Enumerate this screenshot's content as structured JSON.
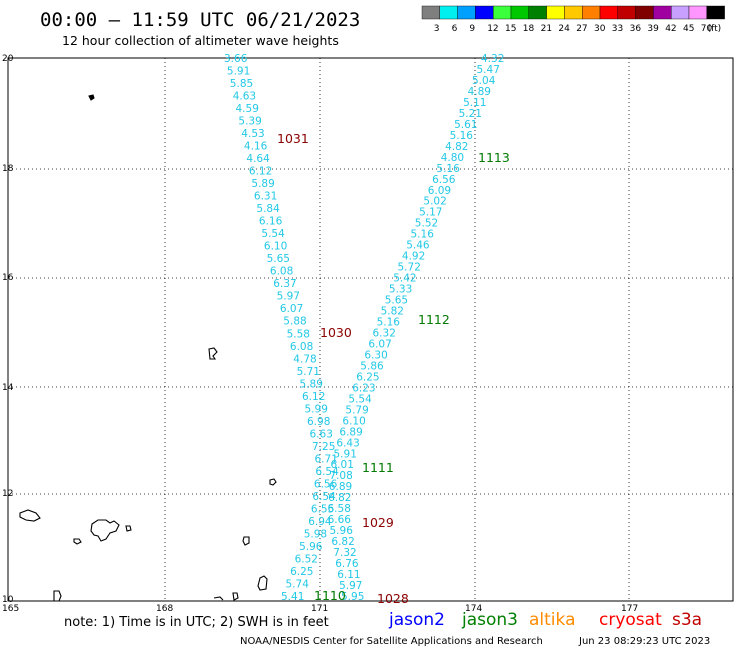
{
  "header": {
    "title": "00:00 — 11:59 UTC 06/21/2023",
    "subtitle": "12 hour collection of altimeter wave heights"
  },
  "legend": {
    "colors": [
      "#7f7f7f",
      "#00f0f0",
      "#00a0ff",
      "#0000ff",
      "#3cff3c",
      "#00c800",
      "#008000",
      "#ffff00",
      "#ffc800",
      "#ff8000",
      "#ff0000",
      "#c00000",
      "#800000",
      "#a000a0",
      "#c8a0ff",
      "#ff96ff",
      "#000000"
    ],
    "labels": [
      "3",
      "6",
      "9",
      "12",
      "15",
      "18",
      "21",
      "24",
      "27",
      "30",
      "33",
      "36",
      "39",
      "42",
      "45",
      "70",
      "(ft)"
    ]
  },
  "axes": {
    "lon_labels": [
      "165",
      "168",
      "171",
      "174",
      "177"
    ],
    "lat_labels": [
      "20",
      "18",
      "16",
      "14",
      "12",
      "10"
    ]
  },
  "tracks": {
    "west_track": {
      "color": "#22c8e6",
      "values": [
        "3.66",
        "5.91",
        "5.85",
        "4.63",
        "4.59",
        "5.39",
        "4.53",
        "4.16",
        "4.64",
        "6.12",
        "5.89",
        "6.31",
        "5.84",
        "6.16",
        "5.54",
        "6.10",
        "5.65",
        "6.08",
        "6.37",
        "5.97",
        "6.07",
        "5.88",
        "5.58",
        "6.08",
        "4.78",
        "5.71",
        "5.89",
        "6.12",
        "5.99",
        "6.98",
        "6.63",
        "7.25",
        "6.71",
        "6.54",
        "6.56",
        "6.54",
        "6.55",
        "6.94",
        "5.98",
        "5.96",
        "6.52",
        "6.25",
        "5.74",
        "5.41"
      ]
    },
    "east_track": {
      "color": "#22c8e6",
      "values": [
        "4.32",
        "5.47",
        "5.04",
        "4.89",
        "5.11",
        "5.21",
        "5.61",
        "5.16",
        "4.82",
        "4.80",
        "5.16",
        "6.56",
        "6.09",
        "5.02",
        "5.17",
        "5.52",
        "5.16",
        "5.46",
        "4.92",
        "5.72",
        "5.42",
        "5.33",
        "5.65",
        "5.82",
        "5.16",
        "6.32",
        "6.07",
        "6.30",
        "5.86",
        "6.25",
        "6.23",
        "5.54",
        "5.79",
        "6.10",
        "6.89",
        "6.43",
        "5.91",
        "6.01",
        "7.08",
        "6.89",
        "6.82",
        "6.58",
        "6.66",
        "5.96",
        "6.82",
        "7.32",
        "6.76",
        "6.11",
        "5.97",
        "5.95"
      ]
    }
  },
  "passes": [
    {
      "label": "1031",
      "color": "#8b0000"
    },
    {
      "label": "1113",
      "color": "#007a00"
    },
    {
      "label": "1030",
      "color": "#8b0000"
    },
    {
      "label": "1112",
      "color": "#007a00"
    },
    {
      "label": "1111",
      "color": "#007a00"
    },
    {
      "label": "1029",
      "color": "#8b0000"
    },
    {
      "label": "1110",
      "color": "#007a00"
    },
    {
      "label": "1028",
      "color": "#8b0000"
    }
  ],
  "footer": {
    "note": "note:  1) Time is in UTC;  2) SWH is in feet",
    "satellites": [
      {
        "name": "jason2",
        "color": "#0000ff"
      },
      {
        "name": "jason3",
        "color": "#008000"
      },
      {
        "name": "altika",
        "color": "#ff8c00"
      },
      {
        "name": "cryosat",
        "color": "#ff0000"
      },
      {
        "name": "s3a",
        "color": "#c00000"
      }
    ],
    "credit": "NOAA/NESDIS Center for Satellite Applications and Research",
    "timestamp": "Jun 23 08:29:23 UTC 2023"
  }
}
